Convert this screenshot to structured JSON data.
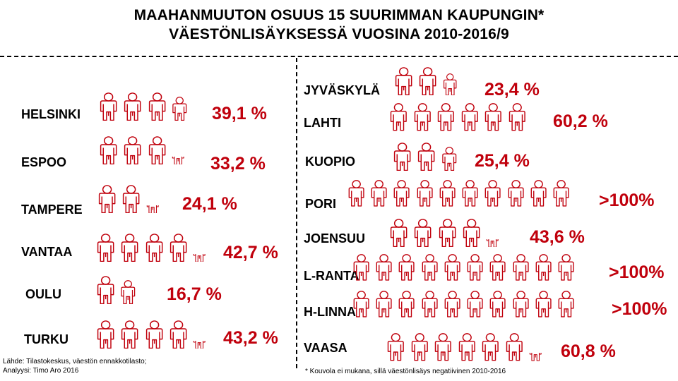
{
  "title_line1": "MAAHANMUUTON OSUUS 15 SUURIMMAN KAUPUNGIN*",
  "title_line2": "VÄESTÖNLISÄYKSESSÄ VUOSINA 2010-2016/9",
  "source_line1": "Lähde: Tilastokeskus, väestön ennakkotilasto;",
  "source_line2": "Analyysi: Timo Aro 2016",
  "footnote": "* Kouvola ei mukana, sillä väestönlisäys negatiivinen 2010-2016",
  "colors": {
    "accent": "#c0000c"
  },
  "icon": "person-icon",
  "chart_data": {
    "type": "pictogram",
    "unit": "%",
    "rows": [
      {
        "city": "HELSINKI",
        "value": 39.1,
        "label": "39,1 %",
        "icons_full": 3,
        "icons_partial": [
          0.6
        ]
      },
      {
        "city": "ESPOO",
        "value": 33.2,
        "label": "33,2 %",
        "icons_full": 3,
        "icons_partial": [
          0.2
        ]
      },
      {
        "city": "TAMPERE",
        "value": 24.1,
        "label": "24,1 %",
        "icons_full": 2,
        "icons_partial": [
          0.2
        ]
      },
      {
        "city": "VANTAA",
        "value": 42.7,
        "label": "42,7 %",
        "icons_full": 4,
        "icons_partial": [
          0.2
        ]
      },
      {
        "city": "OULU",
        "value": 16.7,
        "label": "16,7 %",
        "icons_full": 1,
        "icons_partial": [
          0.6
        ]
      },
      {
        "city": "TURKU",
        "value": 43.2,
        "label": "43,2 %",
        "icons_full": 4,
        "icons_partial": [
          0.2
        ]
      },
      {
        "city": "JYVÄSKYLÄ",
        "value": 23.4,
        "label": "23,4 %",
        "icons_full": 2,
        "icons_partial": [
          0.4
        ]
      },
      {
        "city": "LAHTI",
        "value": 60.2,
        "label": "60,2 %",
        "icons_full": 6,
        "icons_partial": []
      },
      {
        "city": "KUOPIO",
        "value": 25.4,
        "label": "25,4 %",
        "icons_full": 2,
        "icons_partial": [
          0.6
        ]
      },
      {
        "city": "PORI",
        "value": null,
        "label": ">100%",
        "icons_full": 10,
        "icons_partial": []
      },
      {
        "city": "JOENSUU",
        "value": 43.6,
        "label": "43,6 %",
        "icons_full": 4,
        "icons_partial": [
          0.2
        ]
      },
      {
        "city": "L-RANTA",
        "value": null,
        "label": ">100%",
        "icons_full": 10,
        "icons_partial": []
      },
      {
        "city": "H-LINNA",
        "value": null,
        "label": ">100%",
        "icons_full": 10,
        "icons_partial": []
      },
      {
        "city": "VAASA",
        "value": 60.8,
        "label": "60,8 %",
        "icons_full": 6,
        "icons_partial": [
          0.2
        ]
      }
    ]
  }
}
